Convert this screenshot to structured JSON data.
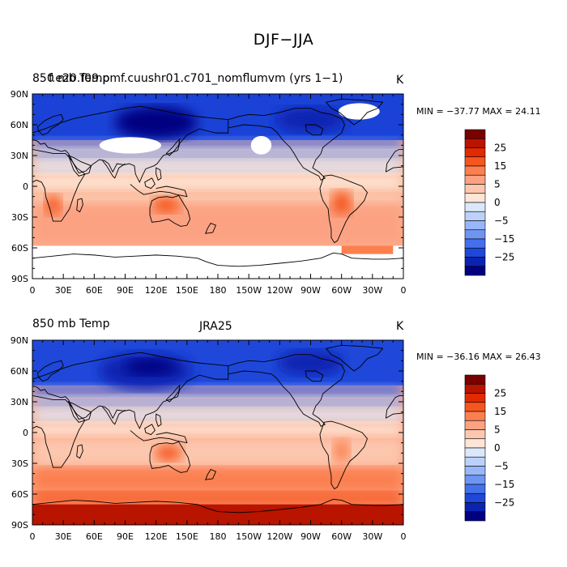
{
  "main_title": "DJF−JJA",
  "panels": [
    {
      "title_left_a": "850 mb Temp",
      "title_left_b": "f.e20.f09.pmf.cuushr01.c701_nomflumvm (yrs 1−1)",
      "title_center": "",
      "units": "K",
      "min_max": "MIN = −37.77 MAX =  24.11"
    },
    {
      "title_left_a": "850 mb Temp",
      "title_left_b": "",
      "title_center": "JRA25",
      "units": "K",
      "min_max": "MIN = −36.16 MAX =  26.43"
    }
  ],
  "lat_labels": [
    "90N",
    "60N",
    "30N",
    "0",
    "30S",
    "60S",
    "90S"
  ],
  "lon_labels": [
    "0",
    "30E",
    "60E",
    "90E",
    "120E",
    "150E",
    "180",
    "150W",
    "120W",
    "90W",
    "60W",
    "30W",
    "0"
  ],
  "colorbar": {
    "labels": [
      "25",
      "15",
      "5",
      "0",
      "−5",
      "−15",
      "−25"
    ],
    "colors": [
      "#7a0000",
      "#b81400",
      "#e22a00",
      "#f5551e",
      "#fb7f4f",
      "#fca283",
      "#fcc7ae",
      "#fde6d7",
      "#dbe7fa",
      "#bcd1f9",
      "#98b7f8",
      "#6f95f3",
      "#4470ec",
      "#1f48da",
      "#0a24b0",
      "#000080"
    ]
  },
  "chart_data": {
    "type": "heatmap",
    "title": "DJF−JJA",
    "xlabel": "",
    "ylabel": "",
    "x_range": [
      0,
      360
    ],
    "y_range": [
      -90,
      90
    ],
    "units": "K",
    "panels": [
      {
        "name": "f.e20.f09.pmf.cuushr01.c701_nomflumvm (yrs 1−1)",
        "min": -37.77,
        "max": 24.11
      },
      {
        "name": "JRA25",
        "min": -36.16,
        "max": 26.43
      }
    ],
    "contour_levels": [
      -30,
      -25,
      -20,
      -15,
      -10,
      -5,
      0,
      5,
      10,
      15,
      20,
      25,
      30
    ]
  }
}
